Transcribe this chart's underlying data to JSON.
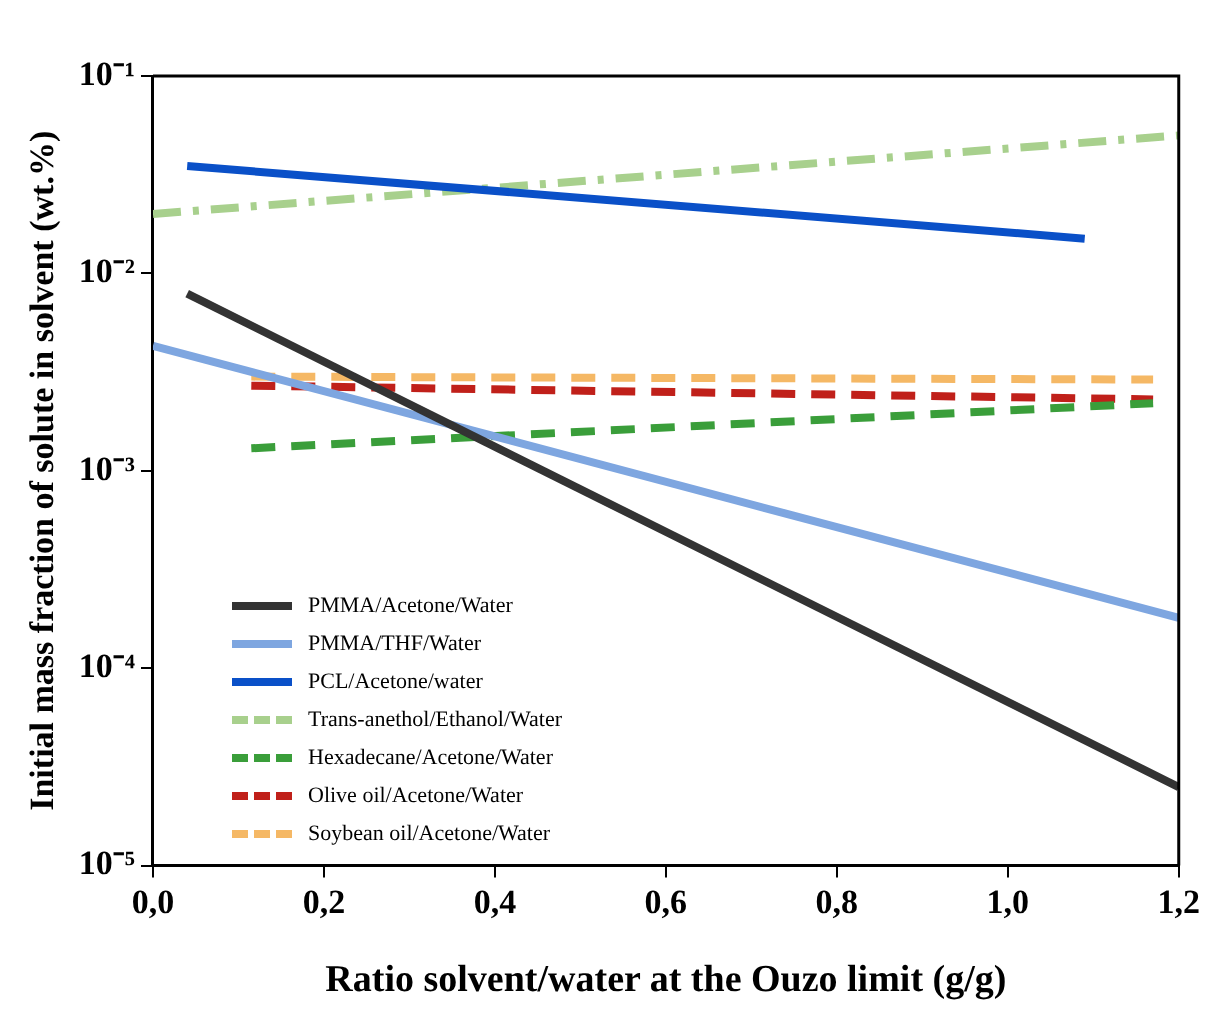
{
  "chart_data": {
    "type": "line",
    "xlabel": "Ratio solvent/water at the Ouzo limit (g/g)",
    "ylabel": "Initial mass fraction of solute in solvent (wt.%)",
    "log": "y",
    "grid": false,
    "legend": "bottom left",
    "marker": "none",
    "xlim": [
      0,
      1.2
    ],
    "xticks": [
      {
        "value": 0,
        "label": "0,0"
      },
      {
        "value": 0.2,
        "label": "0,2"
      },
      {
        "value": 0.4,
        "label": "0,4"
      },
      {
        "value": 0.6,
        "label": "0,6"
      },
      {
        "value": 0.8,
        "label": "0,8"
      },
      {
        "value": 1,
        "label": "1,0"
      },
      {
        "value": 1.2,
        "label": "1,2"
      }
    ],
    "ylim": [
      1e-05,
      0.1
    ],
    "yticks": [
      {
        "value": 1e-05,
        "label": "10⁻⁵"
      },
      {
        "value": 0.0001,
        "label": "10⁻⁴"
      },
      {
        "value": 0.001,
        "label": "10⁻³"
      },
      {
        "value": 0.01,
        "label": "10⁻²"
      },
      {
        "value": 0.1,
        "label": "10⁻¹"
      }
    ],
    "series": [
      {
        "name": "PMMA/Acetone/Water",
        "color": "#333333",
        "line_style": "solid",
        "x": [
          0.04,
          1.2
        ],
        "values": [
          0.0079,
          2.5e-05
        ]
      },
      {
        "name": "PMMA/THF/Water",
        "color": "#7ea6e0",
        "line_style": "solid",
        "x": [
          0,
          1.2
        ],
        "values": [
          0.0043,
          0.00018
        ]
      },
      {
        "name": "PCL/Acetone/water",
        "color": "#0a50c8",
        "line_style": "solid",
        "x": [
          0.04,
          1.09
        ],
        "values": [
          0.035,
          0.015
        ]
      },
      {
        "name": "Trans-anethol/Ethanol/Water",
        "color": "#a8d08d",
        "line_style": "dashdot",
        "x": [
          0,
          1.2
        ],
        "values": [
          0.02,
          0.05
        ]
      },
      {
        "name": "Hexadecane/Acetone/Water",
        "color": "#3a9e3a",
        "line_style": "dashed",
        "x": [
          0.115,
          1.17
        ],
        "values": [
          0.0013,
          0.0022
        ]
      },
      {
        "name": "Olive oil/Acetone/Water",
        "color": "#c0201a",
        "line_style": "dashed",
        "x": [
          0.115,
          1.17
        ],
        "values": [
          0.0027,
          0.0023
        ]
      },
      {
        "name": "Soybean oil/Acetone/Water",
        "color": "#f5b865",
        "line_style": "dashed",
        "x": [
          0.115,
          1.17
        ],
        "values": [
          0.003,
          0.0029
        ]
      }
    ]
  }
}
